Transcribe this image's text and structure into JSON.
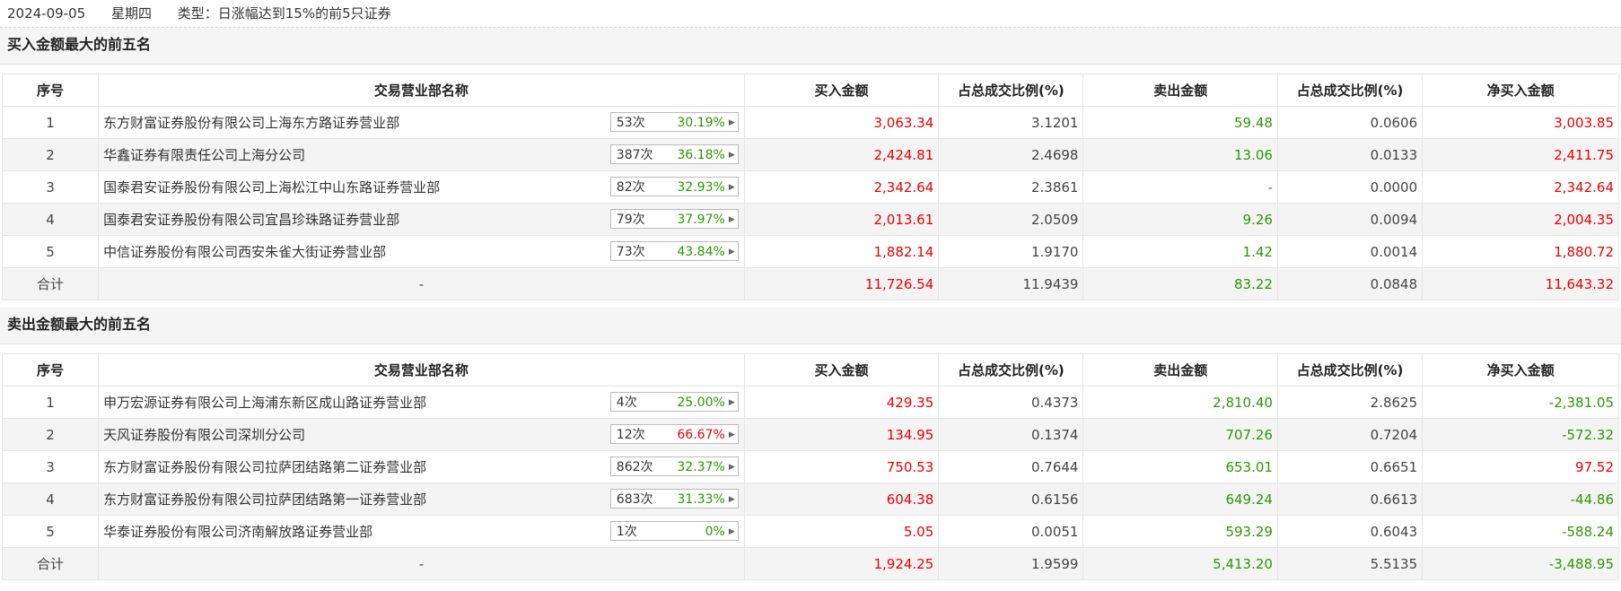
{
  "header": {
    "date": "2024-09-05",
    "weekday": "星期四",
    "type": "类型：日涨幅达到15%的前5只证券"
  },
  "columns": [
    "序号",
    "交易营业部名称",
    "买入金额",
    "占总成交比例(%)",
    "卖出金额",
    "占总成交比例(%)",
    "净买入金额"
  ],
  "buy_section": {
    "title": "买入金额最大的前五名",
    "rows": [
      {
        "no": "1",
        "name": "东方财富证券股份有限公司上海东方路证券营业部",
        "count": "53次",
        "rate": "30.19%",
        "buy": "3,063.34",
        "buy_pct": "3.1201",
        "sell": "59.48",
        "sell_pct": "0.0606",
        "net": "3,003.85"
      },
      {
        "no": "2",
        "name": "华鑫证券有限责任公司上海分公司",
        "count": "387次",
        "rate": "36.18%",
        "buy": "2,424.81",
        "buy_pct": "2.4698",
        "sell": "13.06",
        "sell_pct": "0.0133",
        "net": "2,411.75"
      },
      {
        "no": "3",
        "name": "国泰君安证券股份有限公司上海松江中山东路证券营业部",
        "count": "82次",
        "rate": "32.93%",
        "buy": "2,342.64",
        "buy_pct": "2.3861",
        "sell": "-",
        "sell_pct": "0.0000",
        "net": "2,342.64"
      },
      {
        "no": "4",
        "name": "国泰君安证券股份有限公司宜昌珍珠路证券营业部",
        "count": "79次",
        "rate": "37.97%",
        "buy": "2,013.61",
        "buy_pct": "2.0509",
        "sell": "9.26",
        "sell_pct": "0.0094",
        "net": "2,004.35"
      },
      {
        "no": "5",
        "name": "中信证券股份有限公司西安朱雀大街证券营业部",
        "count": "73次",
        "rate": "43.84%",
        "buy": "1,882.14",
        "buy_pct": "1.9170",
        "sell": "1.42",
        "sell_pct": "0.0014",
        "net": "1,880.72"
      }
    ],
    "total": {
      "label": "合计",
      "name": "-",
      "buy": "11,726.54",
      "buy_pct": "11.9439",
      "sell": "83.22",
      "sell_pct": "0.0848",
      "net": "11,643.32"
    }
  },
  "sell_section": {
    "title": "卖出金额最大的前五名",
    "rows": [
      {
        "no": "1",
        "name": "申万宏源证券有限公司上海浦东新区成山路证券营业部",
        "count": "4次",
        "rate": "25.00%",
        "buy": "429.35",
        "buy_pct": "0.4373",
        "sell": "2,810.40",
        "sell_pct": "2.8625",
        "net": "-2,381.05"
      },
      {
        "no": "2",
        "name": "天风证券股份有限公司深圳分公司",
        "count": "12次",
        "rate": "66.67%",
        "rate_red": true,
        "buy": "134.95",
        "buy_pct": "0.1374",
        "sell": "707.26",
        "sell_pct": "0.7204",
        "net": "-572.32"
      },
      {
        "no": "3",
        "name": "东方财富证券股份有限公司拉萨团结路第二证券营业部",
        "count": "862次",
        "rate": "32.37%",
        "buy": "750.53",
        "buy_pct": "0.7644",
        "sell": "653.01",
        "sell_pct": "0.6651",
        "net": "97.52",
        "net_red": true
      },
      {
        "no": "4",
        "name": "东方财富证券股份有限公司拉萨团结路第一证券营业部",
        "count": "683次",
        "rate": "31.33%",
        "buy": "604.38",
        "buy_pct": "0.6156",
        "sell": "649.24",
        "sell_pct": "0.6613",
        "net": "-44.86"
      },
      {
        "no": "5",
        "name": "华泰证券股份有限公司济南解放路证券营业部",
        "count": "1次",
        "rate": "0%",
        "buy": "5.05",
        "buy_pct": "0.0051",
        "sell": "593.29",
        "sell_pct": "0.6043",
        "net": "-588.24"
      }
    ],
    "total": {
      "label": "合计",
      "name": "-",
      "buy": "1,924.25",
      "buy_pct": "1.9599",
      "sell": "5,413.20",
      "sell_pct": "5.5135",
      "net": "-3,488.95"
    }
  },
  "colors": {
    "up": "#ee0000",
    "down": "#2a9a00"
  }
}
